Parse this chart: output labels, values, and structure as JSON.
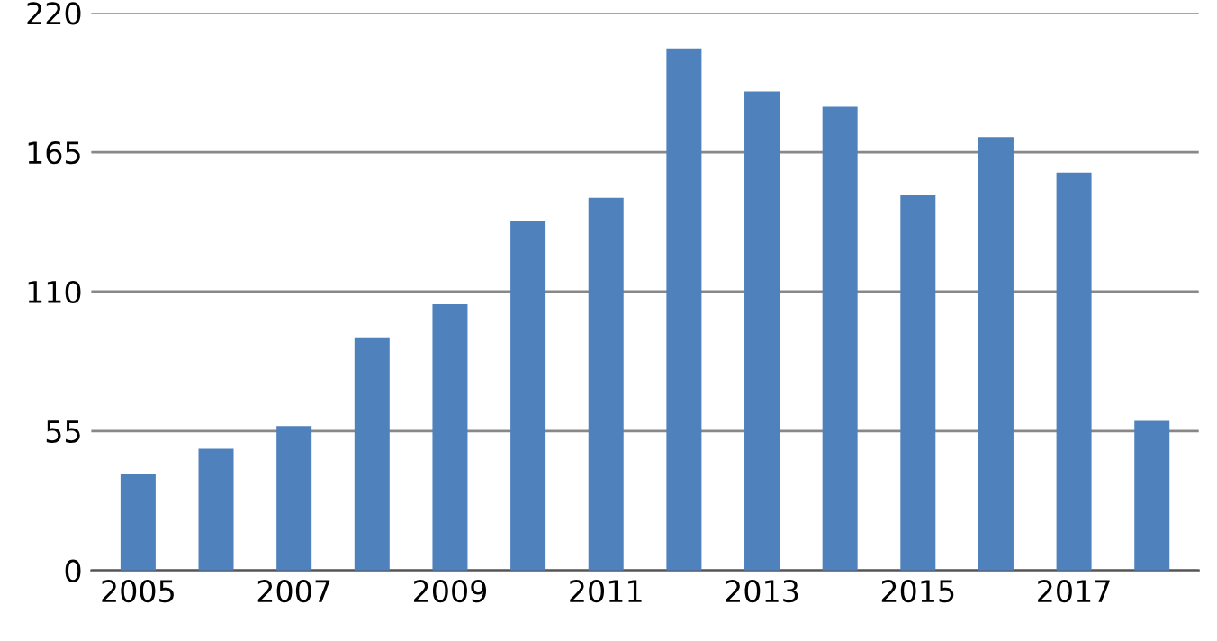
{
  "chart_data": {
    "type": "bar",
    "categories": [
      "2005",
      null,
      "2007",
      null,
      "2009",
      null,
      "2011",
      null,
      "2013",
      null,
      "2015",
      null,
      "2017",
      null
    ],
    "values": [
      38,
      48,
      57,
      92,
      105,
      138,
      147,
      206,
      189,
      183,
      148,
      171,
      157,
      59
    ],
    "color": "#4f81bd",
    "ylim": [
      0,
      220
    ],
    "yticks": [
      0,
      55,
      110,
      165,
      220
    ],
    "grid": "y",
    "legend": false
  }
}
